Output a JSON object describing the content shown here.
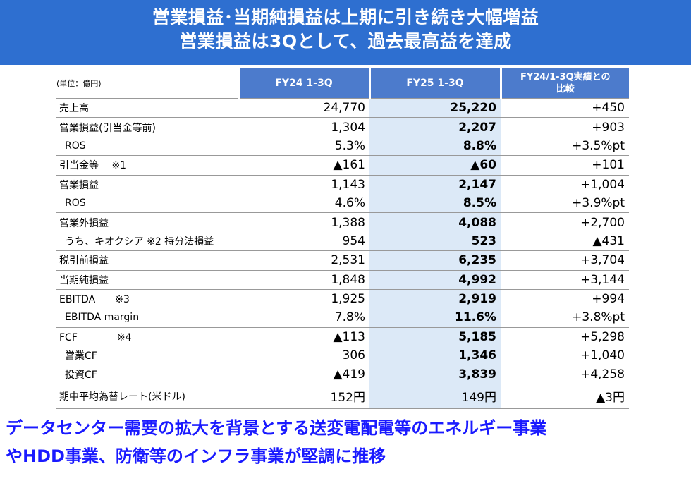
{
  "banner": {
    "line1": "営業損益･当期純損益は上期に引き続き大幅増益",
    "line2": "営業損益は3Qとして、過去最高益を達成"
  },
  "table": {
    "unit_label": "(単位：億円)",
    "col_fy24": "FY24 1-3Q",
    "col_fy25": "FY25 1-3Q",
    "col_cmp_line1": "FY24/1-3Q実績との",
    "col_cmp_line2": "比較",
    "rows": [
      {
        "label": "売上高",
        "fy24": "24,770",
        "fy25": "25,220",
        "diff": "+450"
      },
      {
        "label": "営業損益(引当金等前)",
        "fy24": "1,304",
        "fy25": "2,207",
        "diff": "+903"
      },
      {
        "label": "ROS",
        "fy24": "5.3%",
        "fy25": "8.8%",
        "diff": "+3.5%pt"
      },
      {
        "label": "引当金等　 ※1",
        "fy24": "▲161",
        "fy25": "▲60",
        "diff": "+101"
      },
      {
        "label": "営業損益",
        "fy24": "1,143",
        "fy25": "2,147",
        "diff": "+1,004"
      },
      {
        "label": "ROS",
        "fy24": "4.6%",
        "fy25": "8.5%",
        "diff": "+3.9%pt"
      },
      {
        "label": "営業外損益",
        "fy24": "1,388",
        "fy25": "4,088",
        "diff": "+2,700"
      },
      {
        "label": "うち、キオクシア ※2 持分法損益",
        "fy24": "954",
        "fy25": "523",
        "diff": "▲431"
      },
      {
        "label": "税引前損益",
        "fy24": "2,531",
        "fy25": "6,235",
        "diff": "+3,704"
      },
      {
        "label": "当期純損益",
        "fy24": "1,848",
        "fy25": "4,992",
        "diff": "+3,144"
      },
      {
        "label": "EBITDA　　※3",
        "fy24": "1,925",
        "fy25": "2,919",
        "diff": "+994"
      },
      {
        "label": "EBITDA margin",
        "fy24": "7.8%",
        "fy25": "11.6%",
        "diff": "+3.8%pt"
      },
      {
        "label": "FCF　　　　※4",
        "fy24": "▲113",
        "fy25": "5,185",
        "diff": "+5,298"
      },
      {
        "label": "営業CF",
        "fy24": "306",
        "fy25": "1,346",
        "diff": "+1,040"
      },
      {
        "label": "投資CF",
        "fy24": "▲419",
        "fy25": "3,839",
        "diff": "+4,258"
      },
      {
        "label": "期中平均為替レート(米ドル)",
        "fy24": "152円",
        "fy25": "149円",
        "diff": "▲3円"
      }
    ]
  },
  "footer": {
    "line1": "データセンター需要の拡大を背景とする送変電配電等のエネルギー事業",
    "line2": "やHDD事業、防衛等のインフラ事業が堅調に推移"
  },
  "colors": {
    "banner_bg": "#2e6fd0",
    "header_bg": "#4c7bcc",
    "highlight_col": "#dce9f7",
    "footer_text": "#1a1aff"
  }
}
